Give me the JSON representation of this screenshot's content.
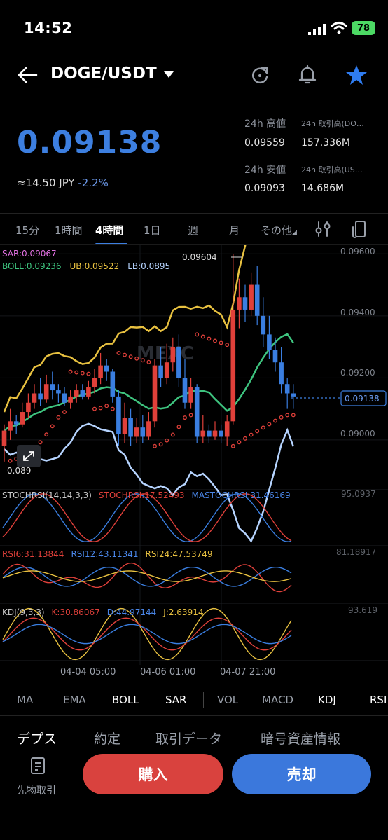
{
  "status": {
    "time": "14:52",
    "battery": "78"
  },
  "header": {
    "pair": "DOGE/USDT"
  },
  "ticker": {
    "price": "0.09138",
    "approx_prefix": "≈14.50 JPY",
    "change": "-2.2%",
    "high_label": "24h 高値",
    "high_value": "0.09559",
    "vol_coin_label": "24h 取引高(DO…",
    "vol_coin_value": "157.336M",
    "low_label": "24h 安値",
    "low_value": "0.09093",
    "vol_usdt_label": "24h 取引高(US…",
    "vol_usdt_value": "14.686M"
  },
  "timeframes": [
    "15分",
    "1時間",
    "4時間",
    "1日",
    "週",
    "月",
    "その他"
  ],
  "active_timeframe": "4時間",
  "main_indicators": {
    "sar": "SAR:0.09067",
    "boll": "BOLL:0.09236",
    "ub": "UB:0.09522",
    "lb": "LB:0.0895"
  },
  "chart_labels": {
    "max_marker": "0.09604",
    "min_marker": "0.089",
    "current_price": "0.09138",
    "watermark": "MEXC"
  },
  "colors": {
    "accent": "#3d7fe0",
    "up": "#e0403a",
    "down": "#3a7ee0",
    "boll_mid": "#3ec47f",
    "boll_ub": "#e8c140",
    "boll_lb": "#b6d4ff",
    "sar": "#e0403a",
    "buy": "#d9423e",
    "sell": "#3b78dc"
  },
  "stochrsi": {
    "title": "STOCHRSI(14,14,3,3)",
    "k": "STOCHRSI:17.52493",
    "d": "MASTOCHRSI:31.46169",
    "axis_max": "95.0937"
  },
  "rsi": {
    "r6": "RSI6:31.13844",
    "r12": "RSI12:43.11341",
    "r24": "RSI24:47.53749",
    "axis_max": "81.18917"
  },
  "kdj": {
    "title": "KDJ(9,3,3)",
    "k": "K:30.86067",
    "d": "D:44.97144",
    "j": "J:2.63914",
    "axis_max": "93.619"
  },
  "chart_data": {
    "type": "candlestick",
    "y_axis_ticks": [
      "0.09600",
      "0.09400",
      "0.09200",
      "0.09000"
    ],
    "ylim": [
      0.0888,
      0.0963
    ],
    "x_axis_ticks": [
      "04-04 05:00",
      "04-06 01:00",
      "04-07 21:00"
    ],
    "candles": [
      [
        0.0898,
        0.0903,
        0.0893,
        0.0905
      ],
      [
        0.0903,
        0.0906,
        0.09,
        0.091
      ],
      [
        0.0906,
        0.0905,
        0.0902,
        0.0908
      ],
      [
        0.0905,
        0.0909,
        0.0904,
        0.0912
      ],
      [
        0.0909,
        0.0912,
        0.0907,
        0.0915
      ],
      [
        0.0912,
        0.0915,
        0.091,
        0.0918
      ],
      [
        0.0915,
        0.0913,
        0.0911,
        0.092
      ],
      [
        0.0913,
        0.0918,
        0.0912,
        0.0921
      ],
      [
        0.0918,
        0.0916,
        0.0913,
        0.0922
      ],
      [
        0.0916,
        0.0915,
        0.0912,
        0.0918
      ],
      [
        0.0915,
        0.0912,
        0.0911,
        0.0917
      ],
      [
        0.0912,
        0.0914,
        0.091,
        0.0916
      ],
      [
        0.0914,
        0.0916,
        0.0912,
        0.0918
      ],
      [
        0.0916,
        0.0914,
        0.0913,
        0.0918
      ],
      [
        0.0914,
        0.0917,
        0.0913,
        0.0919
      ],
      [
        0.0917,
        0.092,
        0.0915,
        0.0923
      ],
      [
        0.092,
        0.0924,
        0.0918,
        0.0928
      ],
      [
        0.0924,
        0.0922,
        0.0919,
        0.0926
      ],
      [
        0.0922,
        0.0914,
        0.0912,
        0.0923
      ],
      [
        0.0914,
        0.0902,
        0.0898,
        0.0916
      ],
      [
        0.0902,
        0.0907,
        0.0899,
        0.0912
      ],
      [
        0.0907,
        0.0901,
        0.0898,
        0.091
      ],
      [
        0.0901,
        0.0904,
        0.0899,
        0.0907
      ],
      [
        0.0904,
        0.0901,
        0.0899,
        0.0908
      ],
      [
        0.0901,
        0.0906,
        0.09,
        0.0909
      ],
      [
        0.0906,
        0.0924,
        0.0904,
        0.0926
      ],
      [
        0.0924,
        0.092,
        0.0917,
        0.093
      ],
      [
        0.092,
        0.0925,
        0.0918,
        0.0931
      ],
      [
        0.0925,
        0.093,
        0.0922,
        0.0933
      ],
      [
        0.093,
        0.092,
        0.0917,
        0.0934
      ],
      [
        0.092,
        0.0912,
        0.091,
        0.0926
      ],
      [
        0.0912,
        0.0917,
        0.091,
        0.092
      ],
      [
        0.0917,
        0.0901,
        0.0899,
        0.0918
      ],
      [
        0.0901,
        0.0903,
        0.0899,
        0.0908
      ],
      [
        0.0903,
        0.0901,
        0.0899,
        0.0905
      ],
      [
        0.0901,
        0.0903,
        0.09,
        0.0906
      ],
      [
        0.0903,
        0.0901,
        0.0899,
        0.0905
      ],
      [
        0.0901,
        0.0906,
        0.0898,
        0.0908
      ],
      [
        0.0906,
        0.0942,
        0.0905,
        0.096
      ],
      [
        0.0942,
        0.0946,
        0.0936,
        0.0952
      ],
      [
        0.0946,
        0.0942,
        0.0938,
        0.095
      ],
      [
        0.0942,
        0.095,
        0.094,
        0.0954
      ],
      [
        0.095,
        0.094,
        0.0937,
        0.0956
      ],
      [
        0.094,
        0.0934,
        0.093,
        0.0946
      ],
      [
        0.0934,
        0.0929,
        0.0926,
        0.094
      ],
      [
        0.0929,
        0.0925,
        0.0922,
        0.0933
      ],
      [
        0.0925,
        0.0918,
        0.0915,
        0.093
      ],
      [
        0.0918,
        0.0915,
        0.091,
        0.092
      ],
      [
        0.0915,
        0.0914,
        0.091,
        0.0918
      ]
    ]
  },
  "indicator_tabs": [
    "MA",
    "EMA",
    "BOLL",
    "SAR",
    "VOL",
    "MACD",
    "KDJ",
    "RSI"
  ],
  "indicator_tabs_active": [
    "BOLL",
    "SAR",
    "KDJ",
    "RSI"
  ],
  "bottom_tabs": [
    "デプス",
    "約定",
    "取引データ",
    "暗号資産情報"
  ],
  "futures_label": "先物取引",
  "buy_label": "購入",
  "sell_label": "売却"
}
